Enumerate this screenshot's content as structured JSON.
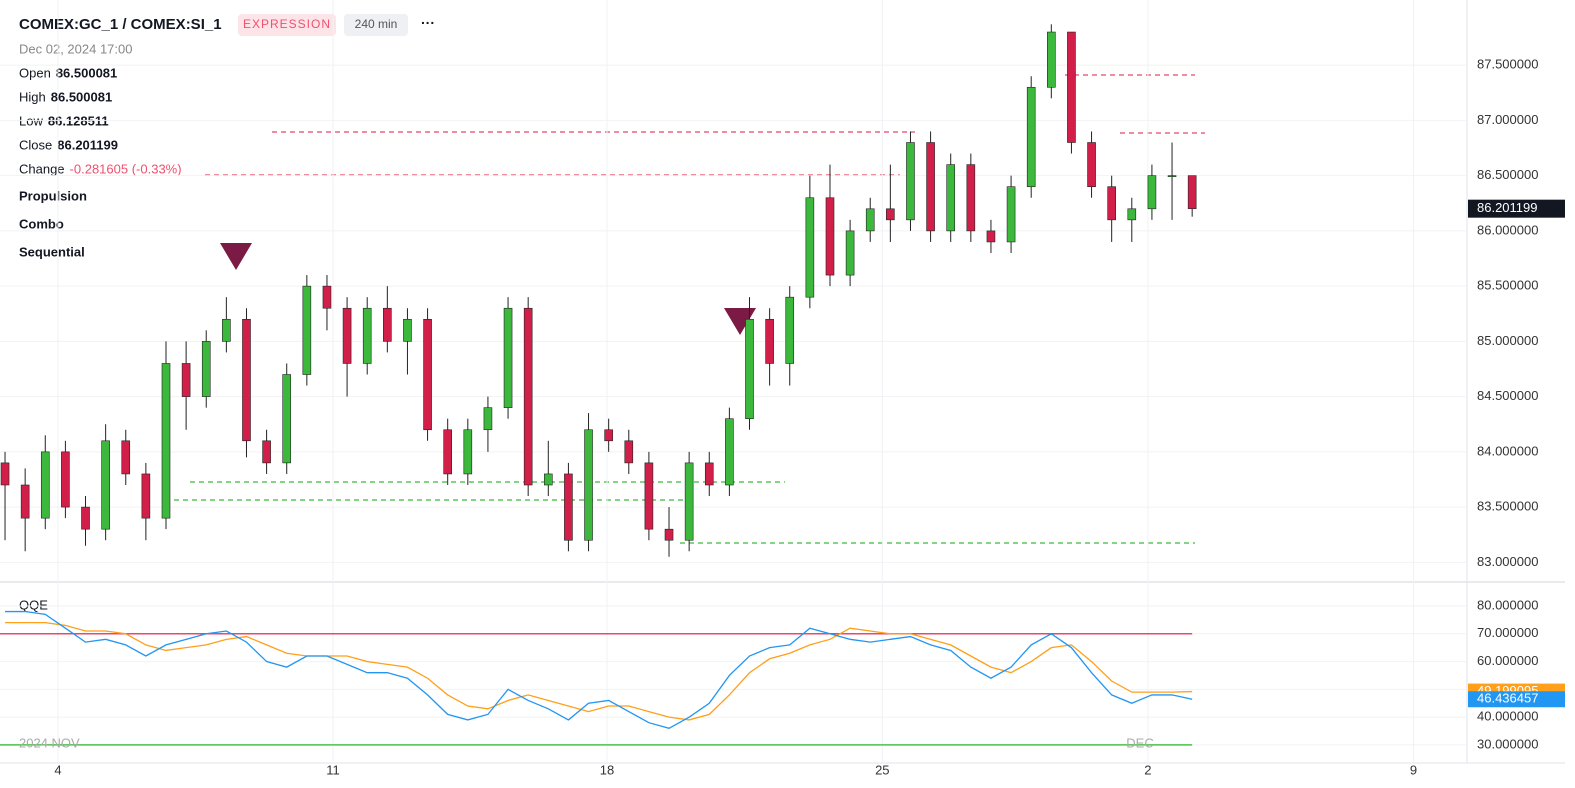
{
  "header": {
    "symbol": "COMEX:GC_1 / COMEX:SI_1",
    "badge": "EXPRESSION",
    "interval": "240 min",
    "more": "···",
    "datetime": "Dec 02, 2024 17:00",
    "fields": [
      {
        "label": "Open",
        "value": "86.500081"
      },
      {
        "label": "High",
        "value": "86.500081"
      },
      {
        "label": "Low",
        "value": "86.128511"
      },
      {
        "label": "Close",
        "value": "86.201199"
      },
      {
        "label": "Change",
        "value": "-0.281605 (-0.33%)"
      }
    ],
    "studies": [
      "Propulsion",
      "Combo",
      "Sequential"
    ]
  },
  "chart_data": [
    {
      "type": "candlestick",
      "up_color": "#3cb93c",
      "down_color": "#d11f4a",
      "open": [
        83.9,
        83.7,
        83.4,
        84.0,
        83.5,
        83.3,
        84.1,
        83.8,
        83.4,
        84.8,
        84.5,
        85.0,
        85.2,
        84.1,
        83.9,
        84.7,
        85.5,
        85.3,
        84.8,
        85.3,
        85.0,
        85.2,
        84.2,
        83.8,
        84.2,
        84.4,
        85.3,
        83.7,
        83.8,
        83.2,
        84.2,
        84.1,
        83.9,
        83.3,
        83.2,
        83.9,
        83.7,
        84.3,
        85.2,
        84.8,
        85.4,
        86.3,
        85.6,
        86.0,
        86.2,
        86.1,
        86.8,
        86.0,
        86.6,
        86.0,
        85.9,
        86.4,
        87.3,
        87.8,
        86.8,
        86.4,
        86.1,
        86.2,
        86.5,
        86.500081
      ],
      "high": [
        84.0,
        83.85,
        84.15,
        84.1,
        83.6,
        84.25,
        84.2,
        83.9,
        85.0,
        85.0,
        85.1,
        85.4,
        85.3,
        84.2,
        84.8,
        85.6,
        85.6,
        85.4,
        85.4,
        85.5,
        85.3,
        85.3,
        84.3,
        84.3,
        84.5,
        85.4,
        85.4,
        84.1,
        83.9,
        84.35,
        84.3,
        84.2,
        84.0,
        83.5,
        84.0,
        84.0,
        84.4,
        85.4,
        85.3,
        85.5,
        86.5,
        86.6,
        86.1,
        86.3,
        86.6,
        86.9,
        86.9,
        86.7,
        86.7,
        86.1,
        86.5,
        87.4,
        87.87,
        87.8,
        86.9,
        86.5,
        86.3,
        86.6,
        86.8,
        86.500081
      ],
      "low": [
        83.2,
        83.1,
        83.3,
        83.4,
        83.15,
        83.2,
        83.7,
        83.2,
        83.3,
        84.2,
        84.4,
        84.9,
        83.95,
        83.8,
        83.8,
        84.6,
        85.1,
        84.5,
        84.7,
        84.9,
        84.7,
        84.1,
        83.7,
        83.7,
        84.0,
        84.3,
        83.6,
        83.6,
        83.1,
        83.1,
        84.0,
        83.8,
        83.2,
        83.05,
        83.1,
        83.6,
        83.6,
        84.2,
        84.6,
        84.6,
        85.3,
        85.5,
        85.5,
        85.9,
        85.9,
        86.0,
        85.9,
        85.9,
        85.9,
        85.8,
        85.8,
        86.3,
        87.2,
        86.7,
        86.3,
        85.9,
        85.9,
        86.1,
        86.1,
        86.128511
      ],
      "close": [
        83.7,
        83.4,
        84.0,
        83.5,
        83.3,
        84.1,
        83.8,
        83.4,
        84.8,
        84.5,
        85.0,
        85.2,
        84.1,
        83.9,
        84.7,
        85.5,
        85.3,
        84.8,
        85.3,
        85.0,
        85.2,
        84.2,
        83.8,
        84.2,
        84.4,
        85.3,
        83.7,
        83.8,
        83.2,
        84.2,
        84.1,
        83.9,
        83.3,
        83.2,
        83.9,
        83.7,
        84.3,
        85.2,
        84.8,
        85.4,
        86.3,
        85.6,
        86.0,
        86.2,
        86.1,
        86.8,
        86.0,
        86.6,
        86.0,
        85.9,
        86.4,
        87.3,
        87.8,
        86.8,
        86.4,
        86.1,
        86.2,
        86.5,
        86.5,
        86.201199
      ],
      "ylim": [
        82.84,
        88.09
      ],
      "yticks": [
        {
          "value": 83,
          "label": "83.000000"
        },
        {
          "value": 83.5,
          "label": "83.500000"
        },
        {
          "value": 84,
          "label": "84.000000"
        },
        {
          "value": 84.5,
          "label": "84.500000"
        },
        {
          "value": 85,
          "label": "85.000000"
        },
        {
          "value": 85.5,
          "label": "85.500000"
        },
        {
          "value": 86,
          "label": "86.000000"
        },
        {
          "value": 86.5,
          "label": "86.500000"
        },
        {
          "value": 87,
          "label": "87.000000"
        },
        {
          "value": 87.5,
          "label": "87.500000"
        }
      ],
      "last_label": "86.201199",
      "xlim": [
        -0.25,
        72.56
      ],
      "xticks": [
        {
          "value": 2.63,
          "label": "4"
        },
        {
          "value": 16.3,
          "label": "11"
        },
        {
          "value": 29.92,
          "label": "18"
        },
        {
          "value": 43.6,
          "label": "25"
        },
        {
          "value": 56.8,
          "label": "2"
        },
        {
          "value": 70.0,
          "label": "9"
        }
      ]
    },
    {
      "type": "line",
      "title": "QQE",
      "ylim": [
        23.5,
        87.55
      ],
      "yticks": [
        {
          "value": 30,
          "label": "30.000000"
        },
        {
          "value": 40,
          "label": "40.000000"
        },
        {
          "value": 50,
          "label": "50.000000"
        },
        {
          "value": 60,
          "label": "60.000000"
        },
        {
          "value": 70,
          "label": "70.000000"
        },
        {
          "value": 80,
          "label": "80.000000"
        }
      ],
      "levels": [
        {
          "value": 70,
          "color": "#e8486a"
        },
        {
          "value": 30,
          "color": "#4cc24c"
        }
      ],
      "month_labels": [
        "2024 NOV",
        "DEC"
      ],
      "series": [
        {
          "color": "#ff9f1a",
          "last_label": "49.199095",
          "values": [
            74,
            74,
            74,
            73,
            71,
            71,
            70,
            66,
            64,
            65,
            66,
            68,
            69,
            66,
            63,
            62,
            62,
            62,
            60,
            59,
            58,
            54,
            48,
            44,
            43,
            46,
            48,
            46,
            44,
            42,
            44,
            44,
            42,
            40,
            39,
            41,
            48,
            56,
            61,
            63,
            66,
            68,
            72,
            71,
            70,
            70,
            68,
            66,
            62,
            58,
            56,
            60,
            65,
            66,
            60,
            53,
            49,
            49,
            49,
            49.199095
          ]
        },
        {
          "color": "#2196f3",
          "last_label": "46.436457",
          "values": [
            78,
            78,
            77,
            72,
            67,
            68,
            66,
            62,
            66,
            68,
            70,
            71,
            67,
            60,
            58,
            62,
            62,
            59,
            56,
            56,
            54,
            48,
            41,
            39,
            41,
            50,
            46,
            43,
            39,
            45,
            46,
            42,
            38,
            36,
            40,
            45,
            55,
            62,
            65,
            66,
            72,
            70,
            68,
            67,
            68,
            69,
            66,
            64,
            58,
            54,
            58,
            66,
            70,
            65,
            56,
            48,
            45,
            48,
            48,
            46.436457
          ]
        }
      ]
    }
  ]
}
